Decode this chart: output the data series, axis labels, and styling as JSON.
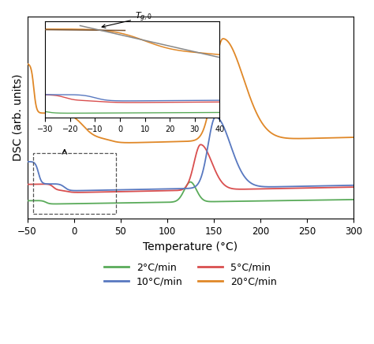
{
  "xlabel": "Temperature (°C)",
  "ylabel": "DSC (arb. units)",
  "colors": {
    "green": "#5aab5a",
    "red": "#d94f4f",
    "blue": "#5878c0",
    "orange": "#e08828"
  },
  "legend": [
    {
      "label": "2°C/min",
      "color": "#5aab5a"
    },
    {
      "label": "5°C/min",
      "color": "#d94f4f"
    },
    {
      "label": "10°C/min",
      "color": "#5878c0"
    },
    {
      "label": "20°C/min",
      "color": "#e08828"
    }
  ],
  "inset_label": "$T_{g,0}$"
}
